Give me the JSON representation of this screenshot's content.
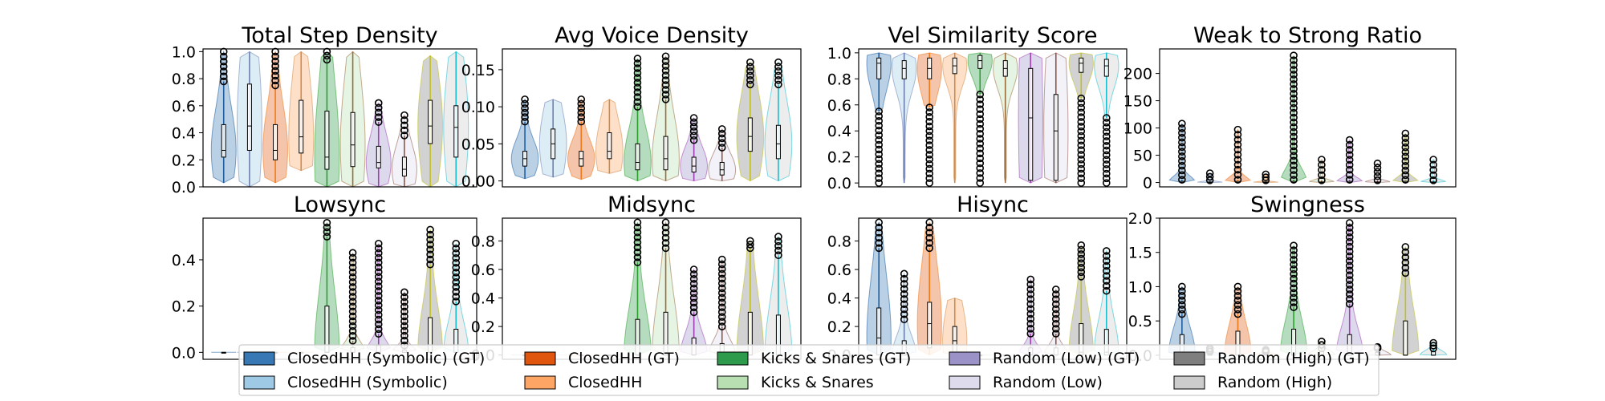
{
  "colors": {
    "palette": [
      "#3778b5",
      "#9ecae6",
      "#e0560f",
      "#fca564",
      "#2e9a4b",
      "#b7dfb2",
      "#9b93c8",
      "#dddbec",
      "#7f7f7f",
      "#cccccc"
    ],
    "line_colors": [
      "#1f5fa0",
      "#6d7fb0",
      "#f07a1a",
      "#d08a4a",
      "#2ca02c",
      "#9a6c3a",
      "#9e40b0",
      "#8c564b",
      "#c0c020",
      "#17becf"
    ],
    "outlier_face": "#000000"
  },
  "legend": {
    "items": [
      "ClosedHH (Symbolic) (GT)",
      "ClosedHH (Symbolic)",
      "ClosedHH (GT)",
      "ClosedHH",
      "Kicks & Snares (GT)",
      "Kicks & Snares",
      "Random (Low) (GT)",
      "Random (Low)",
      "Random (High) (GT)",
      "Random (High)"
    ]
  },
  "chart_data": [
    {
      "type": "violin",
      "title": "Total Step Density",
      "ylim": [
        0,
        1.02
      ],
      "yticks": [
        "0.0",
        "0.2",
        "0.4",
        "0.6",
        "0.8",
        "1.0"
      ],
      "ytick_values": [
        0,
        0.2,
        0.4,
        0.6,
        0.8,
        1.0
      ],
      "series": [
        {
          "min": 0.03,
          "q1": 0.22,
          "median": 0.27,
          "q3": 0.46,
          "max": 0.78,
          "out_lo": null,
          "out_hi": 1.0
        },
        {
          "min": 0.0,
          "q1": 0.27,
          "median": 0.45,
          "q3": 0.76,
          "max": 1.0,
          "out_lo": null,
          "out_hi": null
        },
        {
          "min": 0.03,
          "q1": 0.2,
          "median": 0.27,
          "q3": 0.46,
          "max": 0.75,
          "out_lo": null,
          "out_hi": 1.0
        },
        {
          "min": 0.12,
          "q1": 0.25,
          "median": 0.37,
          "q3": 0.64,
          "max": 1.0,
          "out_lo": null,
          "out_hi": null
        },
        {
          "min": 0.0,
          "q1": 0.13,
          "median": 0.22,
          "q3": 0.56,
          "max": 0.94,
          "out_lo": null,
          "out_hi": 1.0
        },
        {
          "min": 0.0,
          "q1": 0.15,
          "median": 0.31,
          "q3": 0.55,
          "max": 1.0,
          "out_lo": null,
          "out_hi": null
        },
        {
          "min": 0.0,
          "q1": 0.14,
          "median": 0.18,
          "q3": 0.3,
          "max": 0.48,
          "out_lo": null,
          "out_hi": 0.62
        },
        {
          "min": 0.0,
          "q1": 0.08,
          "median": 0.13,
          "q3": 0.22,
          "max": 0.38,
          "out_lo": null,
          "out_hi": 0.53
        },
        {
          "min": 0.0,
          "q1": 0.32,
          "median": 0.45,
          "q3": 0.64,
          "max": 0.97,
          "out_lo": null,
          "out_hi": null
        },
        {
          "min": 0.0,
          "q1": 0.22,
          "median": 0.44,
          "q3": 0.6,
          "max": 1.0,
          "out_lo": null,
          "out_hi": null
        }
      ]
    },
    {
      "type": "violin",
      "title": "Avg Voice Density",
      "ylim": [
        -0.008,
        0.178
      ],
      "yticks": [
        "0.00",
        "0.05",
        "0.10",
        "0.15"
      ],
      "ytick_values": [
        0,
        0.05,
        0.1,
        0.15
      ],
      "series": [
        {
          "min": 0.003,
          "q1": 0.02,
          "median": 0.03,
          "q3": 0.04,
          "max": 0.08,
          "out_lo": null,
          "out_hi": 0.11
        },
        {
          "min": 0.005,
          "q1": 0.03,
          "median": 0.05,
          "q3": 0.07,
          "max": 0.11,
          "out_lo": null,
          "out_hi": null
        },
        {
          "min": 0.002,
          "q1": 0.02,
          "median": 0.03,
          "q3": 0.04,
          "max": 0.08,
          "out_lo": null,
          "out_hi": 0.11
        },
        {
          "min": 0.01,
          "q1": 0.03,
          "median": 0.04,
          "q3": 0.065,
          "max": 0.11,
          "out_lo": null,
          "out_hi": null
        },
        {
          "min": 0.0,
          "q1": 0.015,
          "median": 0.025,
          "q3": 0.05,
          "max": 0.1,
          "out_lo": null,
          "out_hi": 0.165
        },
        {
          "min": 0.0,
          "q1": 0.015,
          "median": 0.03,
          "q3": 0.06,
          "max": 0.11,
          "out_lo": null,
          "out_hi": 0.168
        },
        {
          "min": 0.0,
          "q1": 0.012,
          "median": 0.02,
          "q3": 0.032,
          "max": 0.055,
          "out_lo": null,
          "out_hi": 0.085
        },
        {
          "min": 0.0,
          "q1": 0.008,
          "median": 0.015,
          "q3": 0.025,
          "max": 0.045,
          "out_lo": null,
          "out_hi": 0.07
        },
        {
          "min": 0.0,
          "q1": 0.04,
          "median": 0.06,
          "q3": 0.085,
          "max": 0.13,
          "out_lo": null,
          "out_hi": 0.16
        },
        {
          "min": 0.0,
          "q1": 0.03,
          "median": 0.05,
          "q3": 0.075,
          "max": 0.13,
          "out_lo": null,
          "out_hi": 0.16
        }
      ]
    },
    {
      "type": "violin",
      "title": "Vel Similarity Score",
      "ylim": [
        -0.03,
        1.03
      ],
      "yticks": [
        "0.0",
        "0.2",
        "0.4",
        "0.6",
        "0.8",
        "1.0"
      ],
      "ytick_values": [
        0,
        0.2,
        0.4,
        0.6,
        0.8,
        1.0
      ],
      "series": [
        {
          "min": 0.55,
          "q1": 0.8,
          "median": 0.92,
          "q3": 0.96,
          "max": 1.0,
          "out_lo": 0.0,
          "out_hi": null
        },
        {
          "min": 0.0,
          "q1": 0.8,
          "median": 0.88,
          "q3": 0.94,
          "max": 1.0,
          "out_lo": null,
          "out_hi": null
        },
        {
          "min": 0.58,
          "q1": 0.8,
          "median": 0.88,
          "q3": 0.96,
          "max": 1.0,
          "out_lo": 0.0,
          "out_hi": null
        },
        {
          "min": 0.0,
          "q1": 0.84,
          "median": 0.9,
          "q3": 0.96,
          "max": 1.0,
          "out_lo": null,
          "out_hi": null
        },
        {
          "min": 0.68,
          "q1": 0.88,
          "median": 0.94,
          "q3": 0.98,
          "max": 1.0,
          "out_lo": 0.0,
          "out_hi": null
        },
        {
          "min": 0.0,
          "q1": 0.82,
          "median": 0.88,
          "q3": 0.94,
          "max": 1.0,
          "out_lo": null,
          "out_hi": null
        },
        {
          "min": 0.0,
          "q1": 0.02,
          "median": 0.5,
          "q3": 0.88,
          "max": 1.0,
          "out_lo": null,
          "out_hi": null
        },
        {
          "min": 0.0,
          "q1": 0.02,
          "median": 0.4,
          "q3": 0.68,
          "max": 1.0,
          "out_lo": null,
          "out_hi": null
        },
        {
          "min": 0.65,
          "q1": 0.85,
          "median": 0.92,
          "q3": 0.96,
          "max": 1.0,
          "out_lo": 0.0,
          "out_hi": null
        },
        {
          "min": 0.5,
          "q1": 0.82,
          "median": 0.9,
          "q3": 0.95,
          "max": 1.0,
          "out_lo": 0.0,
          "out_hi": null
        }
      ]
    },
    {
      "type": "violin",
      "title": "Weak to Strong Ratio",
      "ylim": [
        -8,
        245
      ],
      "yticks": [
        "0",
        "50",
        "100",
        "150",
        "200"
      ],
      "ytick_values": [
        0,
        50,
        100,
        150,
        200
      ],
      "series": [
        {
          "min": 0,
          "q1": 0,
          "median": 0,
          "q3": 2,
          "max": 5,
          "out_lo": null,
          "out_hi": 108
        },
        {
          "min": 0,
          "q1": 0,
          "median": 0,
          "q3": 1,
          "max": 4,
          "out_lo": null,
          "out_hi": 17
        },
        {
          "min": 0,
          "q1": 0,
          "median": 0,
          "q3": 2,
          "max": 5,
          "out_lo": null,
          "out_hi": 97
        },
        {
          "min": 0,
          "q1": 0,
          "median": 0,
          "q3": 1,
          "max": 4,
          "out_lo": null,
          "out_hi": 15
        },
        {
          "min": 0,
          "q1": 0,
          "median": 0,
          "q3": 2,
          "max": 5,
          "out_lo": null,
          "out_hi": 233
        },
        {
          "min": 0,
          "q1": 0,
          "median": 0,
          "q3": 1,
          "max": 4,
          "out_lo": null,
          "out_hi": 42
        },
        {
          "min": 0,
          "q1": 0,
          "median": 0,
          "q3": 2,
          "max": 5,
          "out_lo": null,
          "out_hi": 78
        },
        {
          "min": 0,
          "q1": 0,
          "median": 0,
          "q3": 1,
          "max": 4,
          "out_lo": null,
          "out_hi": 35
        },
        {
          "min": 0,
          "q1": 0,
          "median": 0,
          "q3": 2,
          "max": 5,
          "out_lo": null,
          "out_hi": 90
        },
        {
          "min": 0,
          "q1": 0,
          "median": 0,
          "q3": 1,
          "max": 4,
          "out_lo": null,
          "out_hi": 42
        }
      ]
    },
    {
      "type": "violin",
      "title": "Lowsync",
      "ylim": [
        -0.03,
        0.58
      ],
      "yticks": [
        "0.0",
        "0.2",
        "0.4"
      ],
      "ytick_values": [
        0,
        0.2,
        0.4
      ],
      "series": [
        {
          "min": 0,
          "q1": 0,
          "median": 0,
          "q3": 0,
          "max": 0,
          "out_lo": null,
          "out_hi": null
        },
        {
          "min": 0,
          "q1": 0,
          "median": 0,
          "q3": 0,
          "max": 0,
          "out_lo": null,
          "out_hi": null
        },
        {
          "min": 0,
          "q1": 0,
          "median": 0,
          "q3": 0,
          "max": 0,
          "out_lo": null,
          "out_hi": null
        },
        {
          "min": 0,
          "q1": 0,
          "median": 0,
          "q3": 0,
          "max": 0,
          "out_lo": null,
          "out_hi": null
        },
        {
          "min": 0,
          "q1": 0,
          "median": 0,
          "q3": 0.2,
          "max": 0.5,
          "out_lo": null,
          "out_hi": 0.56
        },
        {
          "min": 0,
          "q1": 0,
          "median": 0,
          "q3": 0.02,
          "max": 0.05,
          "out_lo": null,
          "out_hi": 0.43
        },
        {
          "min": 0,
          "q1": 0,
          "median": 0,
          "q3": 0.03,
          "max": 0.08,
          "out_lo": null,
          "out_hi": 0.47
        },
        {
          "min": 0,
          "q1": 0,
          "median": 0,
          "q3": 0.01,
          "max": 0.03,
          "out_lo": null,
          "out_hi": 0.26
        },
        {
          "min": 0,
          "q1": 0,
          "median": 0,
          "q3": 0.15,
          "max": 0.38,
          "out_lo": null,
          "out_hi": 0.53
        },
        {
          "min": 0,
          "q1": 0,
          "median": 0,
          "q3": 0.1,
          "max": 0.22,
          "out_lo": null,
          "out_hi": 0.47
        }
      ]
    },
    {
      "type": "violin",
      "title": "Midsync",
      "ylim": [
        -0.03,
        0.96
      ],
      "yticks": [
        "0.0",
        "0.2",
        "0.4",
        "0.6",
        "0.8"
      ],
      "ytick_values": [
        0,
        0.2,
        0.4,
        0.6,
        0.8
      ],
      "series": [
        {
          "min": 0,
          "q1": 0,
          "median": 0,
          "q3": 0,
          "max": 0,
          "out_lo": null,
          "out_hi": null
        },
        {
          "min": 0,
          "q1": 0,
          "median": 0,
          "q3": 0,
          "max": 0,
          "out_lo": null,
          "out_hi": null
        },
        {
          "min": 0,
          "q1": 0,
          "median": 0,
          "q3": 0,
          "max": 0,
          "out_lo": null,
          "out_hi": null
        },
        {
          "min": 0,
          "q1": 0,
          "median": 0,
          "q3": 0,
          "max": 0,
          "out_lo": null,
          "out_hi": null
        },
        {
          "min": 0,
          "q1": 0,
          "median": 0,
          "q3": 0.25,
          "max": 0.65,
          "out_lo": null,
          "out_hi": 0.93
        },
        {
          "min": 0,
          "q1": 0,
          "median": 0,
          "q3": 0.3,
          "max": 0.75,
          "out_lo": null,
          "out_hi": 0.93
        },
        {
          "min": 0,
          "q1": 0,
          "median": 0,
          "q3": 0.12,
          "max": 0.3,
          "out_lo": null,
          "out_hi": 0.6
        },
        {
          "min": 0,
          "q1": 0,
          "median": 0,
          "q3": 0.08,
          "max": 0.2,
          "out_lo": null,
          "out_hi": 0.67
        },
        {
          "min": 0,
          "q1": 0,
          "median": 0,
          "q3": 0.3,
          "max": 0.75,
          "out_lo": null,
          "out_hi": 0.8
        },
        {
          "min": 0,
          "q1": 0,
          "median": 0,
          "q3": 0.28,
          "max": 0.7,
          "out_lo": null,
          "out_hi": 0.83
        }
      ]
    },
    {
      "type": "violin",
      "title": "Hisync",
      "ylim": [
        -0.03,
        0.96
      ],
      "yticks": [
        "0.0",
        "0.2",
        "0.4",
        "0.6",
        "0.8"
      ],
      "ytick_values": [
        0,
        0.2,
        0.4,
        0.6,
        0.8
      ],
      "series": [
        {
          "min": 0,
          "q1": 0,
          "median": 0.12,
          "q3": 0.33,
          "max": 0.75,
          "out_lo": null,
          "out_hi": 0.93
        },
        {
          "min": 0,
          "q1": 0,
          "median": 0,
          "q3": 0.1,
          "max": 0.25,
          "out_lo": null,
          "out_hi": 0.57
        },
        {
          "min": 0,
          "q1": 0.05,
          "median": 0.22,
          "q3": 0.37,
          "max": 0.75,
          "out_lo": null,
          "out_hi": 0.93
        },
        {
          "min": 0,
          "q1": 0,
          "median": 0.1,
          "q3": 0.2,
          "max": 0.4,
          "out_lo": null,
          "out_hi": null
        },
        {
          "min": 0,
          "q1": 0,
          "median": 0,
          "q3": 0,
          "max": 0,
          "out_lo": null,
          "out_hi": null
        },
        {
          "min": 0,
          "q1": 0,
          "median": 0,
          "q3": 0,
          "max": 0,
          "out_lo": null,
          "out_hi": null
        },
        {
          "min": 0,
          "q1": 0,
          "median": 0,
          "q3": 0.05,
          "max": 0.15,
          "out_lo": null,
          "out_hi": 0.53
        },
        {
          "min": 0,
          "q1": 0,
          "median": 0,
          "q3": 0.05,
          "max": 0.15,
          "out_lo": null,
          "out_hi": 0.46
        },
        {
          "min": 0,
          "q1": 0,
          "median": 0.02,
          "q3": 0.22,
          "max": 0.55,
          "out_lo": null,
          "out_hi": 0.77
        },
        {
          "min": 0,
          "q1": 0,
          "median": 0.02,
          "q3": 0.18,
          "max": 0.45,
          "out_lo": null,
          "out_hi": 0.73
        }
      ]
    },
    {
      "type": "violin",
      "title": "Swingness",
      "ylim": [
        -0.06,
        2.0
      ],
      "yticks": [
        "0.0",
        "0.5",
        "1.0",
        "1.5",
        "2.0"
      ],
      "ytick_values": [
        0,
        0.5,
        1.0,
        1.5,
        2.0
      ],
      "series": [
        {
          "min": 0,
          "q1": 0,
          "median": 0,
          "q3": 0.3,
          "max": 0.6,
          "out_lo": null,
          "out_hi": 1.0
        },
        {
          "min": 0,
          "q1": 0,
          "median": 0,
          "q3": 0.02,
          "max": 0.05,
          "out_lo": null,
          "out_hi": 0.1
        },
        {
          "min": 0,
          "q1": 0,
          "median": 0,
          "q3": 0.35,
          "max": 0.6,
          "out_lo": null,
          "out_hi": 1.0
        },
        {
          "min": 0,
          "q1": 0,
          "median": 0,
          "q3": 0.02,
          "max": 0.05,
          "out_lo": null,
          "out_hi": 0.08
        },
        {
          "min": 0,
          "q1": 0,
          "median": 0,
          "q3": 0.38,
          "max": 0.7,
          "out_lo": null,
          "out_hi": 1.6
        },
        {
          "min": 0,
          "q1": 0,
          "median": 0,
          "q3": 0.05,
          "max": 0.1,
          "out_lo": null,
          "out_hi": 0.2
        },
        {
          "min": 0,
          "q1": 0,
          "median": 0,
          "q3": 0.3,
          "max": 0.75,
          "out_lo": null,
          "out_hi": 1.93
        },
        {
          "min": 0,
          "q1": 0,
          "median": 0,
          "q3": 0.04,
          "max": 0.1,
          "out_lo": null,
          "out_hi": 0.12
        },
        {
          "min": 0,
          "q1": 0,
          "median": 0,
          "q3": 0.5,
          "max": 1.2,
          "out_lo": null,
          "out_hi": 1.58
        },
        {
          "min": 0,
          "q1": 0,
          "median": 0,
          "q3": 0.05,
          "max": 0.1,
          "out_lo": null,
          "out_hi": 0.18
        }
      ]
    }
  ]
}
